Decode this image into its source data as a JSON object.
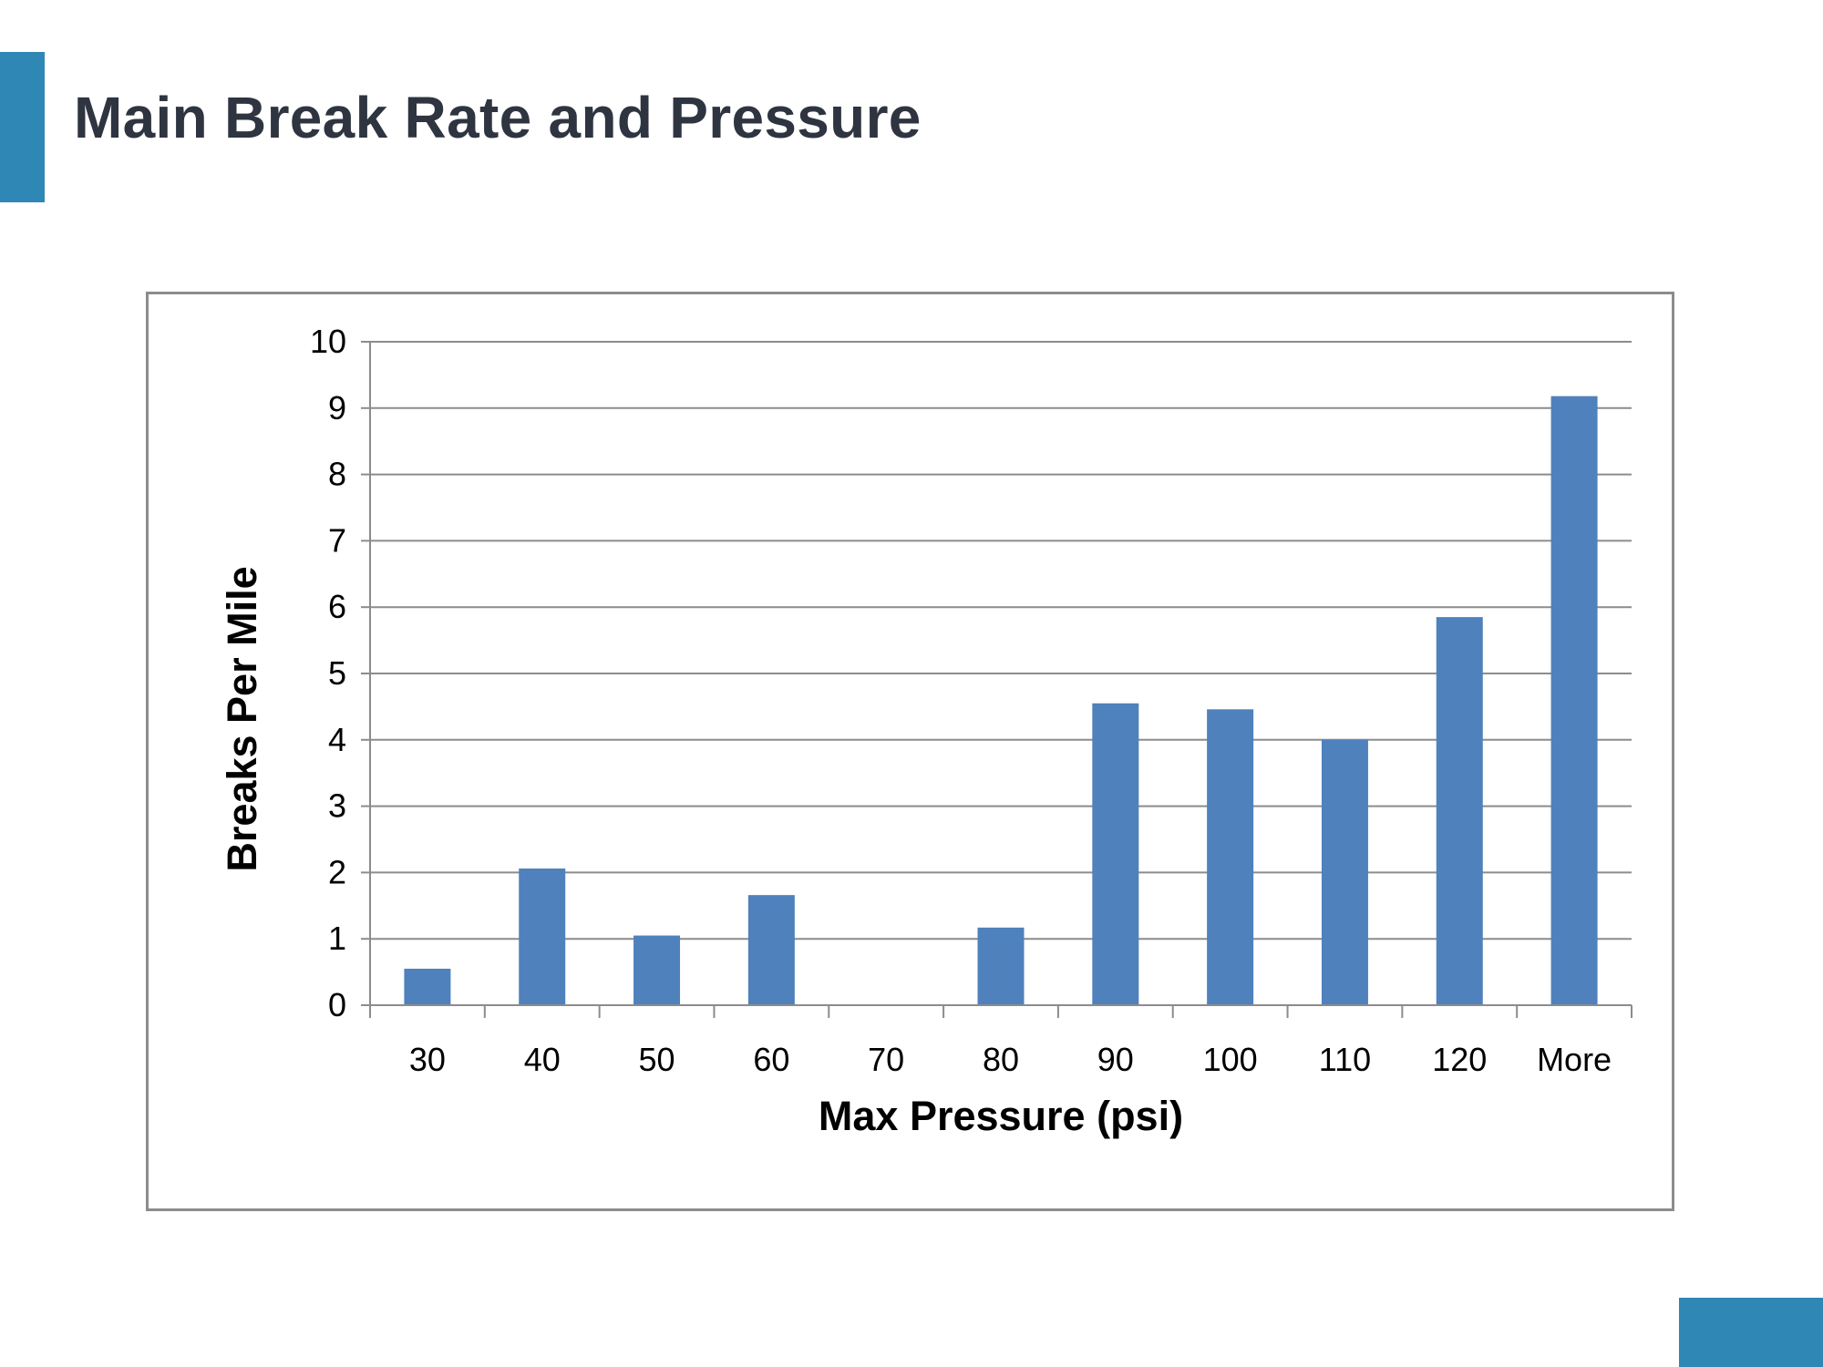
{
  "slide": {
    "title": "Main Break Rate and Pressure",
    "accent_color": "#2e87b4"
  },
  "chart_data": {
    "type": "bar",
    "categories": [
      "30",
      "40",
      "50",
      "60",
      "70",
      "80",
      "90",
      "100",
      "110",
      "120",
      "More"
    ],
    "values": [
      0.55,
      2.06,
      1.05,
      1.66,
      0,
      1.17,
      4.55,
      4.46,
      4.0,
      5.85,
      9.18
    ],
    "xlabel": "Max Pressure (psi)",
    "ylabel": "Breaks Per Mile",
    "ylim": [
      0,
      10
    ],
    "yticks": [
      0,
      1,
      2,
      3,
      4,
      5,
      6,
      7,
      8,
      9,
      10
    ],
    "grid": true,
    "legend": "none",
    "bar_color": "#4f81bd"
  }
}
